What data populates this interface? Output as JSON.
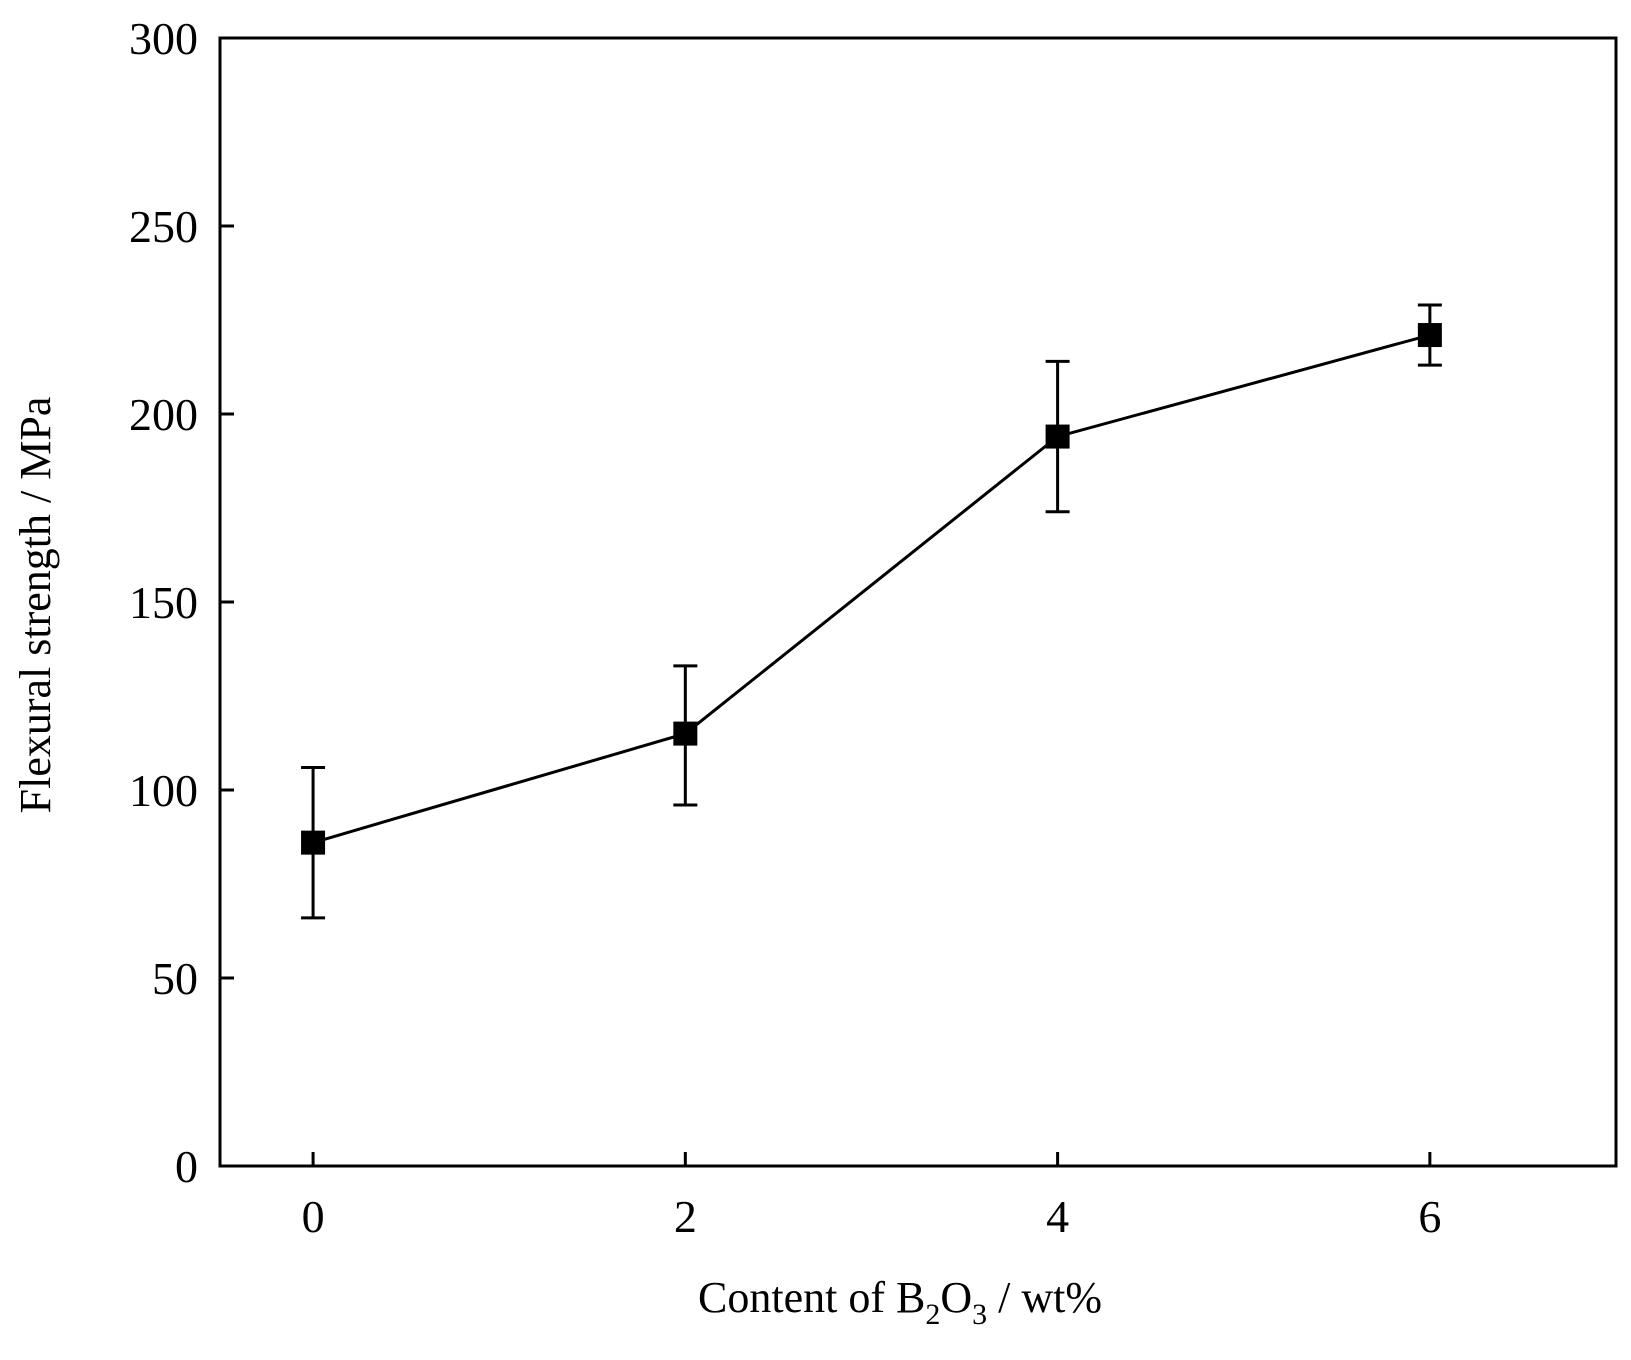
{
  "chart_data": {
    "type": "line",
    "title": "",
    "xlabel": {
      "prefix": "Content of B",
      "sub1": "2",
      "mid": "O",
      "sub2": "3",
      "suffix": " / wt%"
    },
    "ylabel": "Flexural strength / MPa",
    "xlim": [
      -0.5,
      7.0
    ],
    "ylim": [
      0,
      300
    ],
    "xticks": [
      0,
      2,
      4,
      6
    ],
    "yticks": [
      0,
      50,
      100,
      150,
      200,
      250,
      300
    ],
    "grid": false,
    "legend": "none",
    "series": [
      {
        "marker": "filled-square",
        "color": "#000000",
        "points": [
          {
            "x": 0,
            "y": 86,
            "err_low": 66,
            "err_high": 106
          },
          {
            "x": 2,
            "y": 115,
            "err_low": 96,
            "err_high": 133
          },
          {
            "x": 4,
            "y": 194,
            "err_low": 174,
            "err_high": 214
          },
          {
            "x": 6,
            "y": 221,
            "err_low": 213,
            "err_high": 229
          }
        ]
      }
    ]
  }
}
